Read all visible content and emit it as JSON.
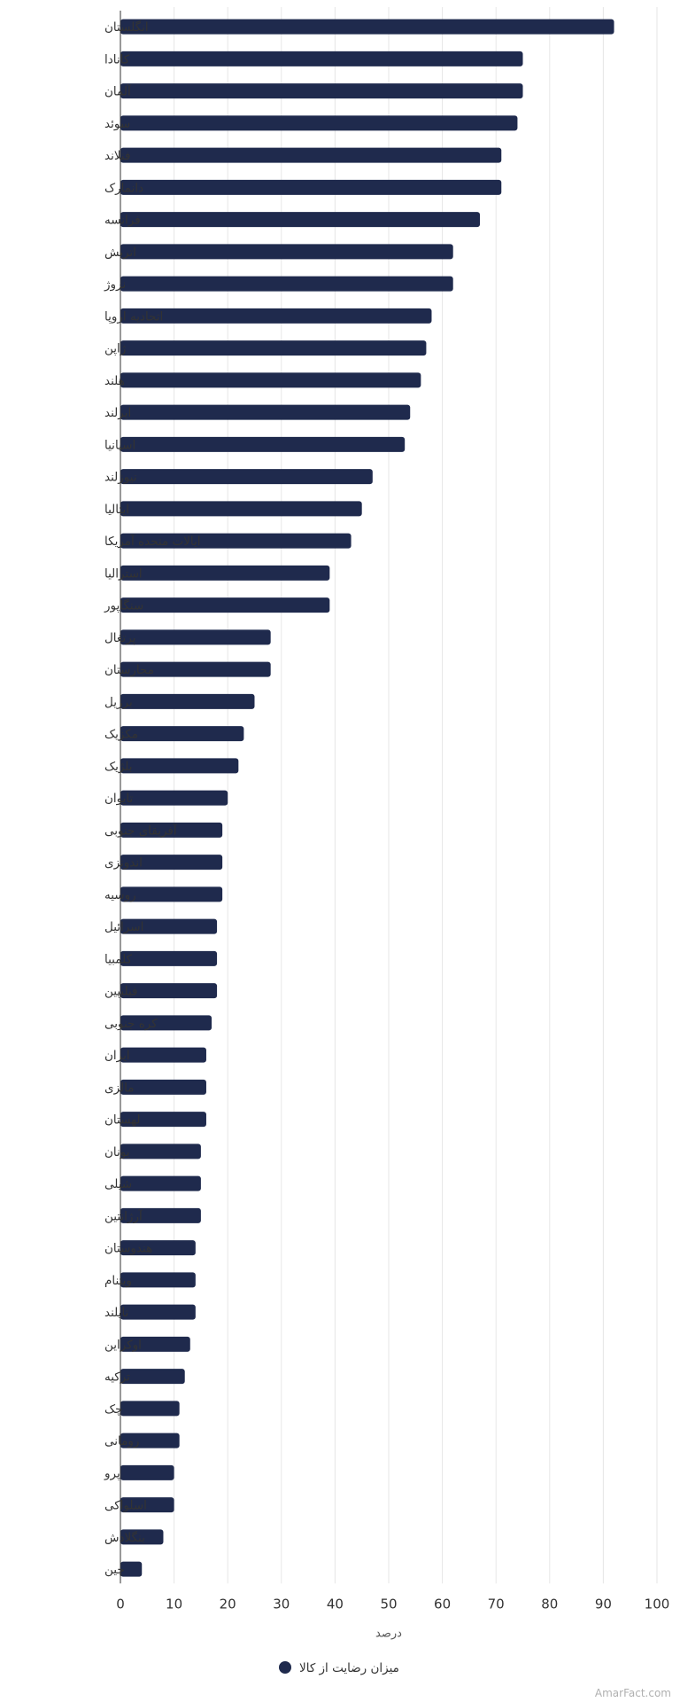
{
  "chart_data": {
    "type": "bar",
    "orientation": "horizontal",
    "categories": [
      "انگلستان",
      "کانادا",
      "آلمان",
      "سوئد",
      "فنلاند",
      "دانمارک",
      "فرانسه",
      "اتریش",
      "نروژ",
      "اتحادیه اروپا",
      "ژاپن",
      "هلند",
      "ایرلند",
      "اسپانیا",
      "نیوزلند",
      "ایتالیا",
      "ایالات متحده آمریکا",
      "استرالیا",
      "سنگاپور",
      "پرتغال",
      "مجارستان",
      "برزیل",
      "مکزیک",
      "بلژیک",
      "تایوان",
      "آفریقای جنوبی",
      "اندونزی",
      "روسیه",
      "اسرائیل",
      "کلمبیا",
      "فیلیپین",
      "کره جنوبی",
      "ایران",
      "مالزی",
      "لهستان",
      "یونان",
      "شیلی",
      "آرژانتین",
      "هندوستان",
      "ویتنام",
      "تایلند",
      "اوکراین",
      "ترکیه",
      "چک",
      "رومانی",
      "پرو",
      "اسلواکی",
      "بنگلادش",
      "چین"
    ],
    "series": [
      {
        "name": "میزان رضایت از کالا",
        "color": "#1f2a4d",
        "values": [
          92,
          75,
          75,
          74,
          71,
          71,
          67,
          62,
          62,
          58,
          57,
          56,
          54,
          53,
          47,
          45,
          43,
          39,
          39,
          28,
          28,
          25,
          23,
          22,
          20,
          19,
          19,
          19,
          18,
          18,
          18,
          17,
          16,
          16,
          16,
          15,
          15,
          15,
          14,
          14,
          14,
          13,
          12,
          11,
          11,
          10,
          10,
          8,
          4
        ]
      }
    ],
    "xlabel": "درصد",
    "xlim": [
      0,
      100
    ],
    "xticks": [
      0,
      10,
      20,
      30,
      40,
      50,
      60,
      70,
      80,
      90,
      100
    ],
    "grid": true,
    "legend": "bottom-center"
  },
  "watermark": "AmarFact.com"
}
